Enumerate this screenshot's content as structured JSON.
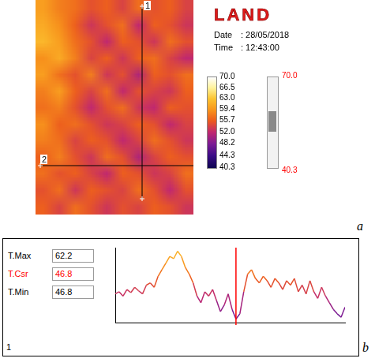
{
  "figure_letters": [
    "a",
    "b"
  ],
  "thermal_image": {
    "brand": "LAND",
    "info": [
      [
        "Date",
        ": 28/05/2018"
      ],
      [
        "Time",
        ": 12:43:00"
      ]
    ],
    "line_labels": [
      "1",
      "2"
    ],
    "cells": [
      [
        60,
        58,
        57,
        55,
        56,
        54,
        57,
        55,
        56,
        54
      ],
      [
        61,
        59,
        56,
        53,
        55,
        57,
        52,
        56,
        55,
        53
      ],
      [
        62,
        60,
        57,
        55,
        52,
        56,
        55,
        53,
        57,
        55
      ],
      [
        59,
        61,
        58,
        54,
        56,
        53,
        56,
        57,
        54,
        52
      ],
      [
        60,
        57,
        55,
        58,
        53,
        55,
        51,
        56,
        55,
        57
      ],
      [
        58,
        60,
        56,
        54,
        57,
        52,
        55,
        54,
        53,
        56
      ],
      [
        57,
        58,
        55,
        52,
        55,
        57,
        53,
        52,
        56,
        55
      ],
      [
        59,
        56,
        57,
        55,
        53,
        54,
        56,
        55,
        52,
        54
      ],
      [
        58,
        57,
        54,
        56,
        55,
        52,
        54,
        57,
        55,
        53
      ],
      [
        56,
        58,
        55,
        53,
        57,
        55,
        51,
        54,
        56,
        55
      ],
      [
        57,
        55,
        56,
        54,
        52,
        56,
        55,
        53,
        54,
        57
      ],
      [
        55,
        57,
        53,
        56,
        55,
        54,
        57,
        55,
        52,
        55
      ],
      [
        56,
        54,
        57,
        55,
        53,
        55,
        54,
        56,
        55,
        53
      ]
    ],
    "colorbar": {
      "range": [
        40.3,
        70
      ],
      "ticks": [
        {
          "value": 70,
          "label": "70.0"
        },
        66.5,
        {
          "value": 63,
          "label": "63.0"
        },
        59.4,
        55.7,
        {
          "value": 52,
          "label": "52.0"
        },
        48.2,
        44.3,
        40.3
      ]
    },
    "span": [
      {
        "value": 70,
        "label": "70.0"
      },
      40.3
    ],
    "span_color": "red"
  },
  "chart_data": {
    "type": "line",
    "profile_line": "1",
    "readouts": [
      {
        "label": "T.Max",
        "value": 62.2
      },
      {
        "label": "T.Csr",
        "value": 46.8,
        "color": "red"
      },
      {
        "label": "T.Min",
        "value": 46.8
      }
    ],
    "x": [
      0,
      1,
      2,
      3,
      4,
      5,
      6,
      7,
      8,
      9,
      10,
      11,
      12,
      13,
      14,
      15,
      16,
      17,
      18,
      19,
      20,
      21,
      22,
      23,
      24,
      25,
      26,
      27,
      28,
      29,
      30,
      31,
      32,
      33,
      34,
      35,
      36,
      37,
      38,
      39,
      40,
      41,
      42,
      43,
      44,
      45,
      46,
      47,
      48,
      49,
      50,
      51,
      52,
      53,
      54,
      55,
      56,
      57,
      58,
      59
    ],
    "values": [
      52.5,
      53.0,
      52.0,
      53.5,
      52.8,
      54.0,
      53.2,
      52.5,
      54.5,
      55.0,
      54.0,
      56.5,
      58.0,
      59.5,
      61.0,
      60.5,
      62.2,
      61.0,
      58.5,
      57.0,
      55.0,
      52.0,
      50.5,
      53.0,
      52.0,
      53.5,
      51.0,
      48.5,
      50.0,
      52.5,
      49.0,
      46.8,
      48.0,
      53.0,
      57.0,
      58.0,
      56.0,
      55.0,
      56.5,
      55.5,
      54.0,
      56.0,
      55.0,
      53.5,
      55.5,
      54.5,
      56.0,
      53.0,
      54.5,
      52.5,
      55.5,
      53.0,
      51.5,
      54.0,
      52.0,
      50.5,
      49.0,
      48.0,
      47.2,
      49.5
    ],
    "xlim": [
      0,
      59
    ],
    "ylim": [
      46,
      63
    ],
    "cursor": {
      "x": 31,
      "color": "red"
    },
    "grid": false,
    "tick_labels": false
  }
}
